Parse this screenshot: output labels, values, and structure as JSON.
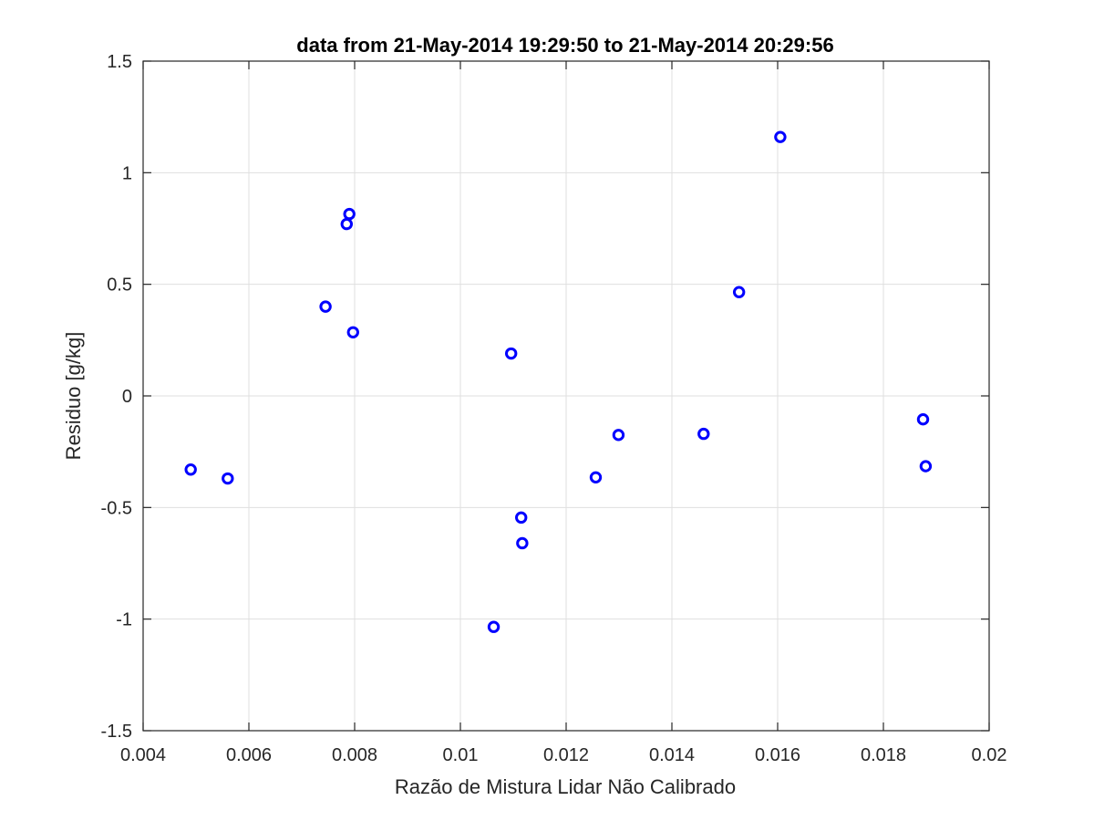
{
  "chart_data": {
    "type": "scatter",
    "title": "data from 21-May-2014 19:29:50 to 21-May-2014 20:29:56",
    "xlabel": "Razão de Mistura Lidar Não Calibrado",
    "ylabel": "Residuo [g/kg]",
    "xlim": [
      0.004,
      0.02
    ],
    "ylim": [
      -1.5,
      1.5
    ],
    "xticks": [
      0.004,
      0.006,
      0.008,
      0.01,
      0.012,
      0.014,
      0.016,
      0.018,
      0.02
    ],
    "xtick_labels": [
      "0.004",
      "0.006",
      "0.008",
      "0.01",
      "0.012",
      "0.014",
      "0.016",
      "0.018",
      "0.02"
    ],
    "yticks": [
      -1.5,
      -1,
      -0.5,
      0,
      0.5,
      1,
      1.5
    ],
    "ytick_labels": [
      "-1.5",
      "-1",
      "-0.5",
      "0",
      "0.5",
      "1",
      "1.5"
    ],
    "grid": true,
    "marker_color": "#0000ff",
    "marker": "circle-open",
    "points": [
      {
        "x": 0.0049,
        "y": -0.33
      },
      {
        "x": 0.0056,
        "y": -0.37
      },
      {
        "x": 0.00745,
        "y": 0.4
      },
      {
        "x": 0.00785,
        "y": 0.77
      },
      {
        "x": 0.0079,
        "y": 0.815
      },
      {
        "x": 0.00797,
        "y": 0.285
      },
      {
        "x": 0.01063,
        "y": -1.035
      },
      {
        "x": 0.01096,
        "y": 0.19
      },
      {
        "x": 0.01115,
        "y": -0.545
      },
      {
        "x": 0.01117,
        "y": -0.66
      },
      {
        "x": 0.01256,
        "y": -0.365
      },
      {
        "x": 0.01299,
        "y": -0.175
      },
      {
        "x": 0.0146,
        "y": -0.17
      },
      {
        "x": 0.01527,
        "y": 0.465
      },
      {
        "x": 0.01605,
        "y": 1.16
      },
      {
        "x": 0.01875,
        "y": -0.105
      },
      {
        "x": 0.0188,
        "y": -0.315
      }
    ]
  }
}
